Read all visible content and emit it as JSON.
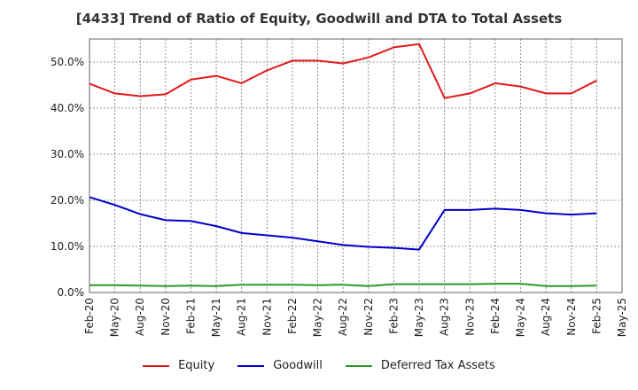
{
  "title": "[4433]  Trend of Ratio of Equity, Goodwill and DTA to Total Assets",
  "chart_data": {
    "type": "line",
    "x": [
      "Feb-20",
      "May-20",
      "Aug-20",
      "Nov-20",
      "Feb-21",
      "May-21",
      "Aug-21",
      "Nov-21",
      "Feb-22",
      "May-22",
      "Aug-22",
      "Nov-22",
      "Feb-23",
      "May-23",
      "Aug-23",
      "Nov-23",
      "Feb-24",
      "May-24",
      "Aug-24",
      "Nov-24",
      "Feb-25",
      "May-25"
    ],
    "ylim": [
      0,
      55
    ],
    "yticks": [
      0,
      10,
      20,
      30,
      40,
      50
    ],
    "ytick_labels": [
      "0.0%",
      "10.0%",
      "20.0%",
      "30.0%",
      "40.0%",
      "50.0%"
    ],
    "grid": true,
    "legend_position": "bottom",
    "series": [
      {
        "name": "Equity",
        "color": "#e31a1c",
        "values": [
          45.3,
          43.2,
          42.6,
          43.0,
          46.2,
          47.0,
          45.4,
          48.2,
          50.3,
          50.3,
          49.7,
          51.0,
          53.2,
          53.9,
          42.2,
          43.2,
          45.4,
          44.7,
          43.2,
          43.2,
          46.0,
          null
        ]
      },
      {
        "name": "Goodwill",
        "color": "#0000cc",
        "values": [
          20.7,
          19.0,
          17.0,
          15.7,
          15.5,
          14.4,
          12.9,
          12.4,
          11.9,
          11.1,
          10.3,
          9.9,
          9.7,
          9.3,
          17.9,
          17.9,
          18.2,
          17.9,
          17.2,
          16.9,
          17.2,
          null
        ]
      },
      {
        "name": "Deferred Tax Assets",
        "color": "#2a9a2a",
        "values": [
          1.6,
          1.6,
          1.5,
          1.4,
          1.5,
          1.4,
          1.7,
          1.7,
          1.7,
          1.6,
          1.7,
          1.4,
          1.8,
          1.8,
          1.8,
          1.8,
          1.9,
          1.9,
          1.4,
          1.4,
          1.5,
          null
        ]
      }
    ]
  }
}
